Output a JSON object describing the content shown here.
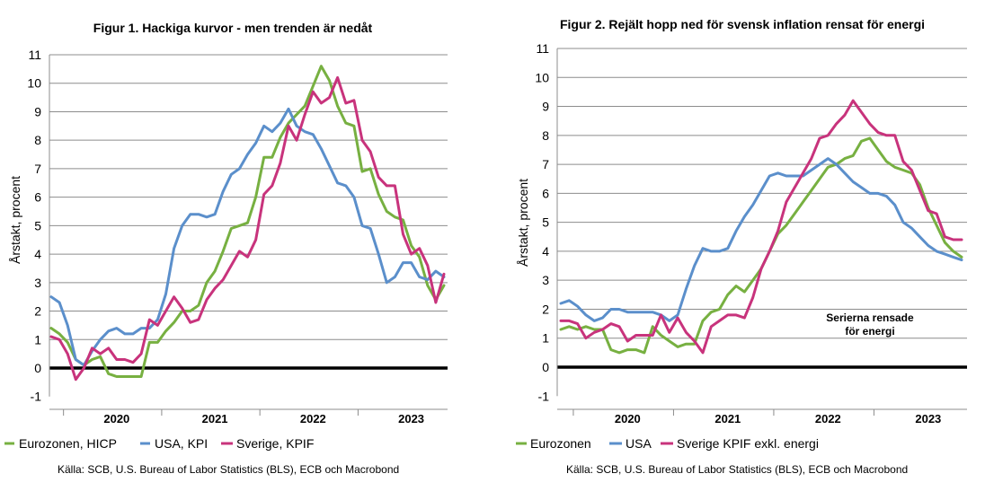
{
  "colors": {
    "eurozone": "#77b041",
    "usa": "#5b8fcb",
    "sweden": "#c8337c",
    "grid": "#8c8c8c",
    "zero": "#000000"
  },
  "chart_data": [
    {
      "type": "line",
      "title": "Figur 1. Hackiga kurvor  - men trenden är nedåt",
      "ylabel": "Årstakt, procent",
      "ylim": [
        -1,
        11
      ],
      "yticks": [
        -1,
        0,
        1,
        2,
        3,
        4,
        5,
        6,
        7,
        8,
        9,
        10,
        11
      ],
      "year_labels": [
        "2020",
        "2021",
        "2022",
        "2023"
      ],
      "x": [
        "2019-11",
        "2019-12",
        "2020-01",
        "2020-02",
        "2020-03",
        "2020-04",
        "2020-05",
        "2020-06",
        "2020-07",
        "2020-08",
        "2020-09",
        "2020-10",
        "2020-11",
        "2020-12",
        "2021-01",
        "2021-02",
        "2021-03",
        "2021-04",
        "2021-05",
        "2021-06",
        "2021-07",
        "2021-08",
        "2021-09",
        "2021-10",
        "2021-11",
        "2021-12",
        "2022-01",
        "2022-02",
        "2022-03",
        "2022-04",
        "2022-05",
        "2022-06",
        "2022-07",
        "2022-08",
        "2022-09",
        "2022-10",
        "2022-11",
        "2022-12",
        "2023-01",
        "2023-02",
        "2023-03",
        "2023-04",
        "2023-05",
        "2023-06",
        "2023-07",
        "2023-08",
        "2023-09",
        "2023-10",
        "2023-11"
      ],
      "series": [
        {
          "name": "Eurozonen, HICP",
          "color_key": "eurozone",
          "values": [
            1.4,
            1.2,
            0.9,
            0.3,
            0.1,
            0.3,
            0.4,
            -0.2,
            -0.3,
            -0.3,
            -0.3,
            -0.3,
            0.9,
            0.9,
            1.3,
            1.6,
            2.0,
            2.0,
            2.2,
            3.0,
            3.4,
            4.1,
            4.9,
            5.0,
            5.1,
            6.0,
            7.4,
            7.4,
            8.1,
            8.6,
            8.9,
            9.2,
            9.9,
            10.6,
            10.1,
            9.2,
            8.6,
            8.5,
            6.9,
            7.0,
            6.1,
            5.5,
            5.3,
            5.2,
            4.3,
            3.9,
            2.9,
            2.4,
            2.9
          ]
        },
        {
          "name": "USA, KPI",
          "color_key": "usa",
          "values": [
            2.5,
            2.3,
            1.5,
            0.3,
            0.1,
            0.6,
            1.0,
            1.3,
            1.4,
            1.2,
            1.2,
            1.4,
            1.4,
            1.7,
            2.6,
            4.2,
            5.0,
            5.4,
            5.4,
            5.3,
            5.4,
            6.2,
            6.8,
            7.0,
            7.5,
            7.9,
            8.5,
            8.3,
            8.6,
            9.1,
            8.5,
            8.3,
            8.2,
            7.7,
            7.1,
            6.5,
            6.4,
            6.0,
            5.0,
            4.9,
            4.0,
            3.0,
            3.2,
            3.7,
            3.7,
            3.2,
            3.1,
            3.4,
            3.2
          ]
        },
        {
          "name": "Sverige, KPIF",
          "color_key": "sweden",
          "values": [
            1.1,
            1.0,
            0.5,
            -0.4,
            0.0,
            0.7,
            0.5,
            0.7,
            0.3,
            0.3,
            0.2,
            0.5,
            1.7,
            1.5,
            2.0,
            2.5,
            2.1,
            1.6,
            1.7,
            2.4,
            2.8,
            3.1,
            3.6,
            4.1,
            3.9,
            4.5,
            6.1,
            6.4,
            7.2,
            8.5,
            8.0,
            8.9,
            9.7,
            9.3,
            9.5,
            10.2,
            9.3,
            9.4,
            8.0,
            7.6,
            6.7,
            6.4,
            6.4,
            4.7,
            4.0,
            4.2,
            3.6,
            2.3,
            3.3
          ]
        }
      ]
    },
    {
      "type": "line",
      "title": "Figur 2. Rejält hopp ned för svensk inflation rensat för energi",
      "ylabel": "Årstakt, procent",
      "ylim": [
        -1,
        11
      ],
      "yticks": [
        -1,
        0,
        1,
        2,
        3,
        4,
        5,
        6,
        7,
        8,
        9,
        10,
        11
      ],
      "year_labels": [
        "2020",
        "2021",
        "2022",
        "2023"
      ],
      "annotation": [
        "Serierna rensade",
        "för energi"
      ],
      "x": [
        "2019-11",
        "2019-12",
        "2020-01",
        "2020-02",
        "2020-03",
        "2020-04",
        "2020-05",
        "2020-06",
        "2020-07",
        "2020-08",
        "2020-09",
        "2020-10",
        "2020-11",
        "2020-12",
        "2021-01",
        "2021-02",
        "2021-03",
        "2021-04",
        "2021-05",
        "2021-06",
        "2021-07",
        "2021-08",
        "2021-09",
        "2021-10",
        "2021-11",
        "2021-12",
        "2022-01",
        "2022-02",
        "2022-03",
        "2022-04",
        "2022-05",
        "2022-06",
        "2022-07",
        "2022-08",
        "2022-09",
        "2022-10",
        "2022-11",
        "2022-12",
        "2023-01",
        "2023-02",
        "2023-03",
        "2023-04",
        "2023-05",
        "2023-06",
        "2023-07",
        "2023-08",
        "2023-09",
        "2023-10",
        "2023-11"
      ],
      "series": [
        {
          "name": "Eurozonen",
          "color_key": "eurozone",
          "values": [
            1.3,
            1.4,
            1.3,
            1.4,
            1.3,
            1.3,
            0.6,
            0.5,
            0.6,
            0.6,
            0.5,
            1.4,
            1.1,
            0.9,
            0.7,
            0.8,
            0.8,
            1.6,
            1.9,
            2.0,
            2.5,
            2.8,
            2.6,
            3.0,
            3.4,
            4.0,
            4.6,
            4.9,
            5.3,
            5.7,
            6.1,
            6.5,
            6.9,
            7.0,
            7.2,
            7.3,
            7.8,
            7.9,
            7.5,
            7.1,
            6.9,
            6.8,
            6.7,
            6.3,
            5.5,
            4.9,
            4.3,
            4.0,
            3.8
          ]
        },
        {
          "name": "USA",
          "color_key": "usa",
          "values": [
            2.2,
            2.3,
            2.1,
            1.8,
            1.6,
            1.7,
            2.0,
            2.0,
            1.9,
            1.9,
            1.9,
            1.9,
            1.8,
            1.6,
            1.8,
            2.7,
            3.5,
            4.1,
            4.0,
            4.0,
            4.1,
            4.7,
            5.2,
            5.6,
            6.1,
            6.6,
            6.7,
            6.6,
            6.6,
            6.6,
            6.8,
            7.0,
            7.2,
            7.0,
            6.7,
            6.4,
            6.2,
            6.0,
            6.0,
            5.9,
            5.6,
            5.0,
            4.8,
            4.5,
            4.2,
            4.0,
            3.9,
            3.8,
            3.7
          ]
        },
        {
          "name": "Sverige KPIF exkl. energi",
          "color_key": "sweden",
          "values": [
            1.6,
            1.6,
            1.5,
            1.0,
            1.2,
            1.3,
            1.5,
            1.4,
            0.9,
            1.1,
            1.1,
            1.1,
            1.8,
            1.2,
            1.7,
            1.2,
            0.9,
            0.5,
            1.4,
            1.6,
            1.8,
            1.8,
            1.7,
            2.4,
            3.4,
            4.0,
            4.7,
            5.7,
            6.2,
            6.7,
            7.2,
            7.9,
            8.0,
            8.4,
            8.7,
            9.2,
            8.8,
            8.4,
            8.1,
            8.0,
            8.0,
            7.1,
            6.8,
            6.1,
            5.4,
            5.3,
            4.5,
            4.4,
            4.4
          ]
        }
      ]
    }
  ],
  "source": "Källa: SCB, U.S. Bureau of Labor Statistics (BLS), ECB och Macrobond"
}
